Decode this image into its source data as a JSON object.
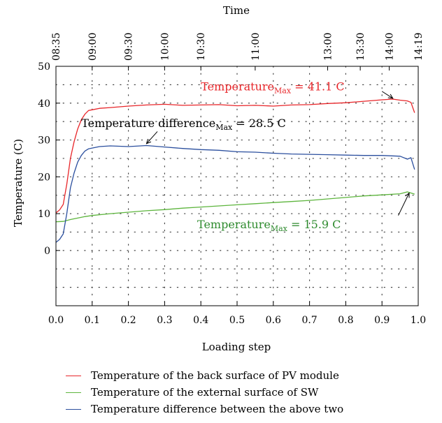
{
  "chart_data": {
    "type": "line",
    "top_axis_title": "Time",
    "top_ticks": [
      {
        "x": 0.0,
        "label": "08:35"
      },
      {
        "x": 0.1,
        "label": "09:00"
      },
      {
        "x": 0.2,
        "label": "09:30"
      },
      {
        "x": 0.3,
        "label": "10:00"
      },
      {
        "x": 0.4,
        "label": "10:30"
      },
      {
        "x": 0.55,
        "label": "11:00"
      },
      {
        "x": 0.75,
        "label": "13:00"
      },
      {
        "x": 0.84,
        "label": "13:30"
      },
      {
        "x": 0.92,
        "label": "14:00"
      },
      {
        "x": 1.0,
        "label": "14:19"
      }
    ],
    "xlabel": "Loading step",
    "ylabel": "Temperature (C)",
    "xlim": [
      0,
      1
    ],
    "ylim": [
      -15,
      50
    ],
    "xticks": [
      0.0,
      0.1,
      0.2,
      0.3,
      0.4,
      0.5,
      0.6,
      0.7,
      0.8,
      0.9,
      1.0
    ],
    "xtick_labels": [
      "0.0",
      "0.1",
      "0.2",
      "0.3",
      "0.4",
      "0.5",
      "0.6",
      "0.7",
      "0.8",
      "0.9",
      "1.0"
    ],
    "yticks": [
      0,
      10,
      20,
      30,
      40,
      50
    ],
    "ytick_labels": [
      "0",
      "10",
      "20",
      "30",
      "40",
      "50"
    ],
    "grid": "dotted",
    "series": [
      {
        "name": "Temperature of the back surface of PV module",
        "color": "#e8262a",
        "x": [
          0.0,
          0.01,
          0.02,
          0.03,
          0.04,
          0.05,
          0.06,
          0.07,
          0.08,
          0.09,
          0.1,
          0.12,
          0.15,
          0.2,
          0.25,
          0.3,
          0.35,
          0.4,
          0.45,
          0.5,
          0.55,
          0.6,
          0.65,
          0.7,
          0.75,
          0.8,
          0.85,
          0.9,
          0.93,
          0.95,
          0.97,
          0.98,
          0.99
        ],
        "y": [
          10.2,
          11,
          12.5,
          18,
          25,
          29.5,
          33,
          35.5,
          37,
          38,
          38.2,
          38.6,
          38.8,
          39.2,
          39.5,
          39.7,
          39.4,
          39.5,
          39.6,
          39.3,
          39.4,
          39.2,
          39.5,
          39.6,
          39.9,
          40.1,
          40.5,
          40.9,
          41.1,
          40.8,
          40.6,
          40.2,
          37.4
        ]
      },
      {
        "name": "Temperature of the external surface of SW",
        "color": "#5db53d",
        "x": [
          0.0,
          0.02,
          0.04,
          0.06,
          0.08,
          0.1,
          0.15,
          0.2,
          0.25,
          0.3,
          0.35,
          0.4,
          0.45,
          0.5,
          0.55,
          0.6,
          0.65,
          0.7,
          0.75,
          0.8,
          0.85,
          0.9,
          0.95,
          0.97,
          0.98,
          0.99
        ],
        "y": [
          7.8,
          7.9,
          8.4,
          8.8,
          9.2,
          9.5,
          10.0,
          10.4,
          10.8,
          11.1,
          11.5,
          11.8,
          12.1,
          12.4,
          12.7,
          13.0,
          13.3,
          13.6,
          14.0,
          14.4,
          14.8,
          15.1,
          15.4,
          15.9,
          15.6,
          15.3
        ]
      },
      {
        "name": "Temperature difference between the above two",
        "color": "#2b4f9e",
        "x": [
          0.0,
          0.01,
          0.02,
          0.03,
          0.04,
          0.05,
          0.06,
          0.07,
          0.08,
          0.09,
          0.1,
          0.12,
          0.15,
          0.2,
          0.25,
          0.3,
          0.35,
          0.4,
          0.45,
          0.5,
          0.55,
          0.6,
          0.65,
          0.7,
          0.75,
          0.8,
          0.85,
          0.9,
          0.95,
          0.97,
          0.98,
          0.99
        ],
        "y": [
          2.2,
          3,
          4.5,
          10,
          17,
          21,
          24,
          25.8,
          27,
          27.6,
          27.8,
          28.2,
          28.4,
          28.2,
          28.5,
          28.1,
          27.7,
          27.4,
          27.2,
          26.8,
          26.7,
          26.4,
          26.2,
          26.1,
          26.0,
          25.9,
          25.8,
          25.8,
          25.6,
          24.8,
          25.2,
          22.0
        ]
      }
    ],
    "annotations": [
      {
        "base": "Temperature",
        "sub": "Max",
        "rest": " = 41.1 C",
        "color": "#e8262a",
        "text_x": 0.4,
        "text_y": 43.5,
        "arrow_from": [
          0.9,
          43.2
        ],
        "arrow_to": [
          0.93,
          41.3
        ]
      },
      {
        "base": "Temperature difference",
        "sub": "Max",
        "rest": " = 28.5 C",
        "color": "#000000",
        "text_x": 0.07,
        "text_y": 33.5,
        "arrow_from": [
          0.28,
          32.3
        ],
        "arrow_to": [
          0.25,
          29.0
        ]
      },
      {
        "base": "Temperature",
        "sub": "Max",
        "rest": " = 15.9 C",
        "color": "#2e8b2e",
        "text_x": 0.39,
        "text_y": 6.0,
        "arrow_from": [
          0.945,
          9.5
        ],
        "arrow_to": [
          0.975,
          15.6
        ]
      }
    ]
  }
}
